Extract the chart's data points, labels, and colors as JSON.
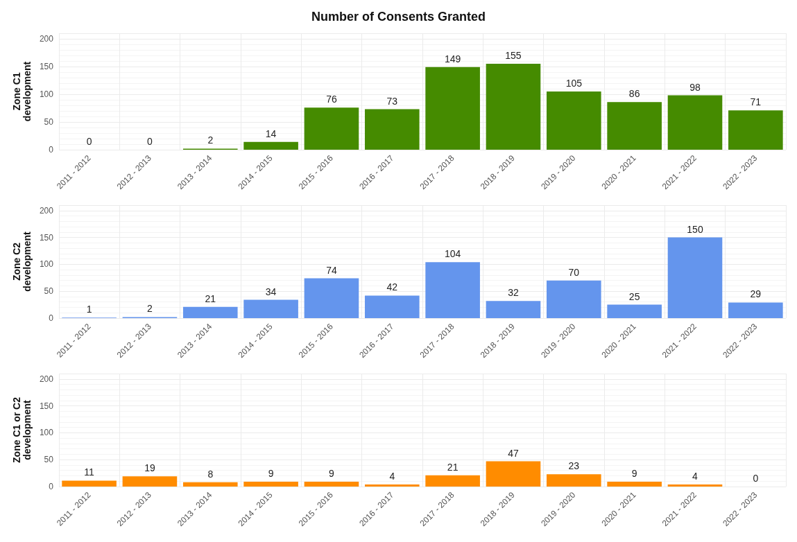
{
  "chart_data": [
    {
      "type": "bar",
      "title": "Number of Consents Granted",
      "ylabel": "Zone C1 development",
      "categories": [
        "2011 - 2012",
        "2012 - 2013",
        "2013 - 2014",
        "2014 - 2015",
        "2015 - 2016",
        "2016 - 2017",
        "2017 - 2018",
        "2018 - 2019",
        "2019 - 2020",
        "2020 - 2021",
        "2021 - 2022",
        "2022 - 2023"
      ],
      "values": [
        0,
        0,
        2,
        14,
        76,
        73,
        149,
        155,
        105,
        86,
        98,
        71
      ],
      "color": "#458b00",
      "ylim": [
        0,
        210
      ],
      "yticks": [
        0,
        50,
        100,
        150,
        200
      ],
      "grid": true,
      "data_labels": true
    },
    {
      "type": "bar",
      "ylabel": "Zone C2 development",
      "categories": [
        "2011 - 2012",
        "2012 - 2013",
        "2013 - 2014",
        "2014 - 2015",
        "2015 - 2016",
        "2016 - 2017",
        "2017 - 2018",
        "2018 - 2019",
        "2019 - 2020",
        "2020 - 2021",
        "2021 - 2022",
        "2022 - 2023"
      ],
      "values": [
        1,
        2,
        21,
        34,
        74,
        42,
        104,
        32,
        70,
        25,
        150,
        29
      ],
      "color": "#6495ed",
      "ylim": [
        0,
        210
      ],
      "yticks": [
        0,
        50,
        100,
        150,
        200
      ],
      "grid": true,
      "data_labels": true
    },
    {
      "type": "bar",
      "ylabel": "Zone C1 or C2 development",
      "categories": [
        "2011 - 2012",
        "2012 - 2013",
        "2013 - 2014",
        "2014 - 2015",
        "2015 - 2016",
        "2016 - 2017",
        "2017 - 2018",
        "2018 - 2019",
        "2019 - 2020",
        "2020 - 2021",
        "2021 - 2022",
        "2022 - 2023"
      ],
      "values": [
        11,
        19,
        8,
        9,
        9,
        4,
        21,
        47,
        23,
        9,
        4,
        0
      ],
      "color": "#ff8c00",
      "ylim": [
        0,
        210
      ],
      "yticks": [
        0,
        50,
        100,
        150,
        200
      ],
      "grid": true,
      "data_labels": true
    }
  ]
}
